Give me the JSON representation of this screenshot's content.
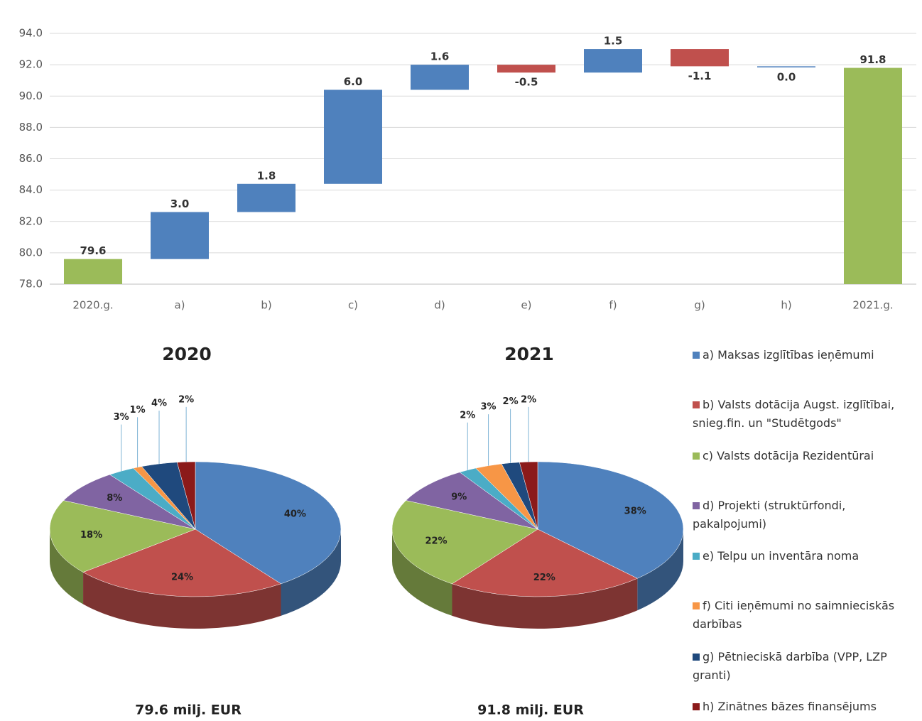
{
  "chart_data": [
    {
      "type": "waterfall",
      "categories": [
        "2020.g.",
        "a)",
        "b)",
        "c)",
        "d)",
        "e)",
        "f)",
        "g)",
        "h)",
        "2021.g."
      ],
      "values": [
        79.6,
        3.0,
        1.8,
        6.0,
        1.6,
        -0.5,
        1.5,
        -1.1,
        0.0,
        91.8
      ],
      "value_labels": [
        "79.6",
        "3.0",
        "1.8",
        "6.0",
        "1.6",
        "-0.5",
        "1.5",
        "-1.1",
        "0.0",
        "91.8"
      ],
      "measure": [
        "absolute",
        "relative",
        "relative",
        "relative",
        "relative",
        "relative",
        "relative",
        "relative",
        "relative",
        "total"
      ],
      "colors": {
        "increase": "#4f81bd",
        "decrease": "#c0504d",
        "total": "#9bbb59"
      },
      "ylim": [
        78,
        94
      ],
      "yticks": [
        {
          "value": 78,
          "label": "78.0"
        },
        {
          "value": 80,
          "label": "80.0"
        },
        {
          "value": 82,
          "label": "82.0"
        },
        {
          "value": 84,
          "label": "84.0"
        },
        {
          "value": 86,
          "label": "86.0"
        },
        {
          "value": 88,
          "label": "88.0"
        },
        {
          "value": 90,
          "label": "90.0"
        },
        {
          "value": 92,
          "label": "92.0"
        },
        {
          "value": 94,
          "label": "94.0"
        }
      ],
      "grid": true
    },
    {
      "type": "pie",
      "title": "2020",
      "subtitle": "79.6 milj. EUR",
      "values": [
        40,
        24,
        18,
        8,
        3,
        1,
        4,
        2
      ],
      "value_labels": [
        "40%",
        "24%",
        "18%",
        "8%",
        "3%",
        "1%",
        "4%",
        "2%"
      ]
    },
    {
      "type": "pie",
      "title": "2021",
      "subtitle": "91.8 milj. EUR",
      "values": [
        38,
        22,
        22,
        9,
        2,
        3,
        2,
        2
      ],
      "value_labels": [
        "38%",
        "22%",
        "22%",
        "9%",
        "2%",
        "3%",
        "2%",
        "2%"
      ]
    },
    {
      "type": "legend",
      "labels": [
        "a) Maksas izglītības ieņēmumi",
        "b) Valsts dotācija Augst. izglītībai, snieg.fin. un \"Studētgods\"",
        "c) Valsts dotācija Rezidentūrai",
        "d) Projekti (struktūrfondi, pakalpojumi)",
        "e) Telpu un inventāra noma",
        "f) Citi ieņēmumi no saimnieciskās darbības",
        "g) Pētnieciskā darbība (VPP, LZP granti)",
        "h) Zinātnes bāzes finansējums"
      ],
      "colors": [
        "#4f81bd",
        "#c0504d",
        "#9bbb59",
        "#8064a2",
        "#4bacc6",
        "#f79646",
        "#1f497d",
        "#8b1a1a"
      ]
    }
  ]
}
